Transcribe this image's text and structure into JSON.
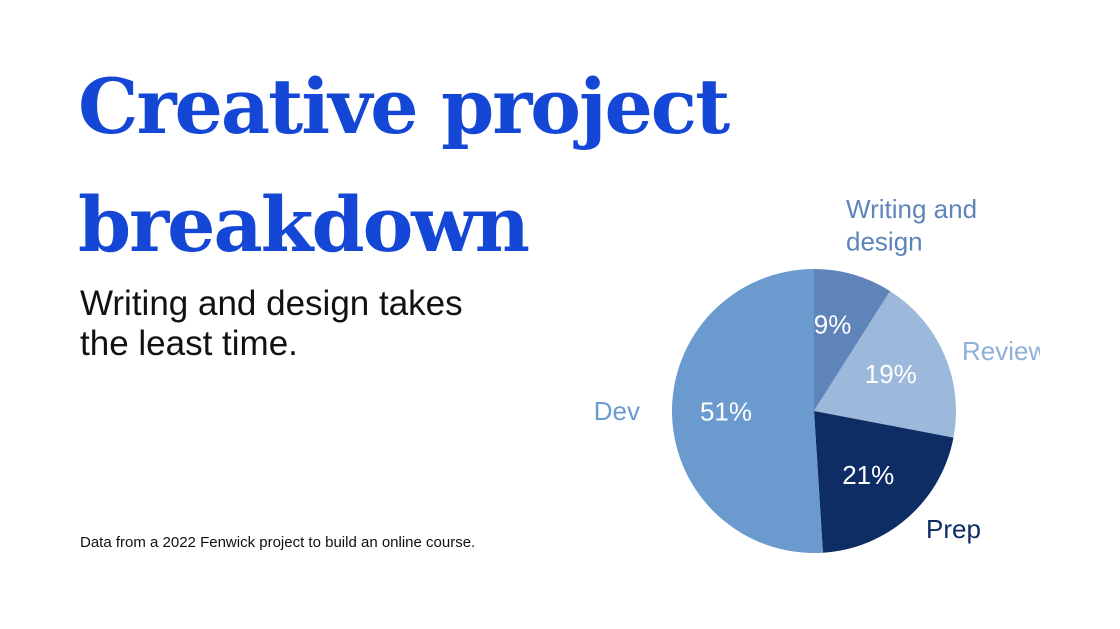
{
  "header": {
    "title_line1": "Creative project",
    "title_line2": "breakdown",
    "subtitle": "Writing and design takes the least time."
  },
  "footnote": "Data from a 2022 Fenwick project to build an online course.",
  "colors": {
    "title": "#1447d6",
    "slice_label_light": "#ffffff"
  },
  "chart_data": {
    "type": "pie",
    "title": "Creative project breakdown",
    "slices": [
      {
        "label": "Writing and design",
        "value": 9,
        "display": "9%",
        "color": "#5f84b9",
        "label_color": "#5f84b9"
      },
      {
        "label": "Review",
        "value": 19,
        "display": "19%",
        "color": "#9cb8da",
        "label_color": "#8fb0d8"
      },
      {
        "label": "Prep",
        "value": 21,
        "display": "21%",
        "color": "#0e2d64",
        "label_color": "#0e2d64"
      },
      {
        "label": "Dev",
        "value": 51,
        "display": "51%",
        "color": "#6b9bce",
        "label_color": "#6b9bce"
      }
    ],
    "start_angle_deg": 0,
    "direction": "clockwise",
    "legend": "outside labels"
  }
}
